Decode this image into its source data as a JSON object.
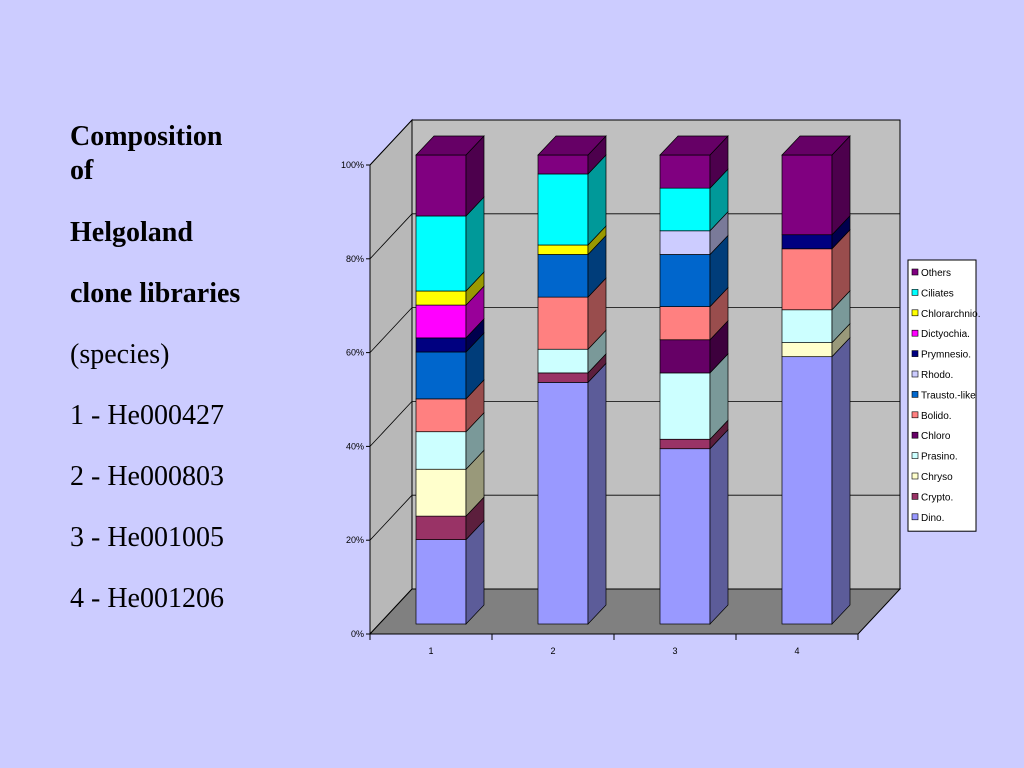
{
  "caption": {
    "title_lines": [
      "Composition",
      "of"
    ],
    "line1": "Helgoland",
    "line2": "clone libraries",
    "line3": "(species)",
    "samples": [
      "1 - He000427",
      "2 - He000803",
      "3 - He001005",
      "4 - He001206"
    ]
  },
  "chart_data": {
    "type": "bar",
    "stacked": true,
    "percent": true,
    "three_d": true,
    "categories": [
      "1",
      "2",
      "3",
      "4"
    ],
    "ylim": [
      0,
      100
    ],
    "y_ticks": [
      "0%",
      "20%",
      "40%",
      "60%",
      "80%",
      "100%"
    ],
    "grid": true,
    "legend_position": "right",
    "series": [
      {
        "name": "Dino.",
        "color": "#9999ff",
        "values": [
          18,
          51,
          37,
          57
        ]
      },
      {
        "name": "Crypto.",
        "color": "#993366",
        "values": [
          5,
          2,
          2,
          0
        ]
      },
      {
        "name": "Chryso",
        "color": "#ffffcc",
        "values": [
          10,
          0,
          0,
          3
        ]
      },
      {
        "name": "Prasino.",
        "color": "#ccffff",
        "values": [
          8,
          5,
          14,
          7
        ]
      },
      {
        "name": "Chloro",
        "color": "#660066",
        "values": [
          0,
          0,
          7,
          0
        ]
      },
      {
        "name": "Bolido.",
        "color": "#ff8080",
        "values": [
          7,
          11,
          7,
          13
        ]
      },
      {
        "name": "Trausto.-like",
        "color": "#0066cc",
        "values": [
          10,
          9,
          11,
          0
        ]
      },
      {
        "name": "Rhodo.",
        "color": "#ccccff",
        "values": [
          0,
          0,
          5,
          0
        ]
      },
      {
        "name": "Prymnesio.",
        "color": "#000080",
        "values": [
          3,
          0,
          0,
          3
        ]
      },
      {
        "name": "Dictyochia.",
        "color": "#ff00ff",
        "values": [
          7,
          0,
          0,
          0
        ]
      },
      {
        "name": "Chlorarchnio.",
        "color": "#ffff00",
        "values": [
          3,
          2,
          0,
          0
        ]
      },
      {
        "name": "Ciliates",
        "color": "#00ffff",
        "values": [
          16,
          15,
          9,
          0
        ]
      },
      {
        "name": "Others",
        "color": "#800080",
        "values": [
          13,
          4,
          7,
          17
        ]
      }
    ]
  }
}
